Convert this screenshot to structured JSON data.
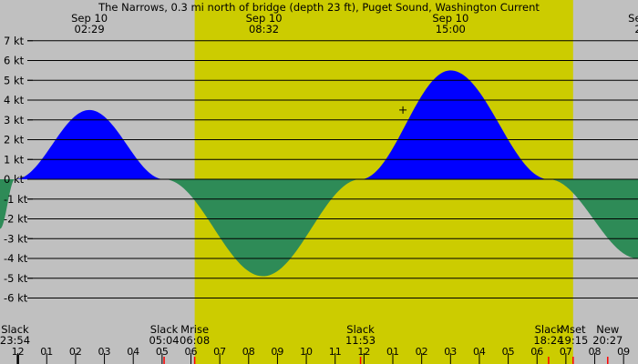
{
  "chart_data": {
    "type": "area",
    "title": "The Narrows, 0.3 mi north of bridge (depth 23 ft), Puget Sound, Washington Current",
    "colors": {
      "night_background": "#c0c0c0",
      "day_background": "#cccc00",
      "flood": "#0000ff",
      "ebb": "#2e8b57",
      "gridline": "#000000",
      "red_tick": "#ff0000"
    },
    "x_hours_visible": [
      23.38,
      45.5
    ],
    "y_range_kt": [
      -7.5,
      7.8
    ],
    "y_tick_values": [
      7,
      6,
      5,
      4,
      3,
      2,
      1,
      0,
      -1,
      -2,
      -3,
      -4,
      -5,
      -6
    ],
    "y_tick_labels": [
      "7 kt",
      "6 kt",
      "5 kt",
      "4 kt",
      "3 kt",
      "2 kt",
      "1 kt",
      "0 kt",
      "-1 kt",
      "-2 kt",
      "-3 kt",
      "-4 kt",
      "-5 kt",
      "-6 kt"
    ],
    "daylight_hours": [
      30.13,
      43.25
    ],
    "curve_points": [
      {
        "time": 23.38,
        "kt": -2.5
      },
      {
        "time": 23.9,
        "kt": 0
      },
      {
        "time": 26.48,
        "kt": 3.5
      },
      {
        "time": 29.07,
        "kt": 0
      },
      {
        "time": 32.5,
        "kt": -4.9
      },
      {
        "time": 35.88,
        "kt": 0
      },
      {
        "time": 39.0,
        "kt": 5.5
      },
      {
        "time": 42.4,
        "kt": 0
      },
      {
        "time": 45.5,
        "kt": -4.0
      }
    ],
    "peak_labels": [
      {
        "date": "Sep 10",
        "time": "02:29",
        "hour": 26.48
      },
      {
        "date": "Sep 10",
        "time": "08:32",
        "hour": 32.53
      },
      {
        "date": "Sep 10",
        "time": "15:00",
        "hour": 39.0
      },
      {
        "date": "Sep",
        "time": "2",
        "hour": 45.5
      }
    ],
    "events": [
      {
        "name": "Slack",
        "time": "23:54",
        "hour": 23.9
      },
      {
        "name": "Slack",
        "time": "05:04",
        "hour": 29.07
      },
      {
        "name": "Mrise",
        "time": "06:08",
        "hour": 30.13
      },
      {
        "name": "Slack",
        "time": "11:53",
        "hour": 35.88
      },
      {
        "name": "Slack",
        "time": "18:24",
        "hour": 42.4
      },
      {
        "name": "Mset",
        "time": "19:15",
        "hour": 43.25
      },
      {
        "name": "New",
        "time": "20:27",
        "hour": 44.45
      }
    ],
    "x_tick_labels": [
      "11",
      "12",
      "01",
      "02",
      "03",
      "04",
      "05",
      "06",
      "07",
      "08",
      "09",
      "10",
      "11",
      "12",
      "01",
      "02",
      "03",
      "04",
      "05",
      "06",
      "07",
      "08",
      "09"
    ],
    "x_tick_hours": [
      23,
      24,
      25,
      26,
      27,
      28,
      29,
      30,
      31,
      32,
      33,
      34,
      35,
      36,
      37,
      38,
      39,
      40,
      41,
      42,
      43,
      44,
      45
    ],
    "red_marker_hours": [
      29.07,
      30.13,
      35.88,
      42.4,
      43.25,
      44.45
    ],
    "crosshair": {
      "hour": 37.35,
      "kt": 3.5
    }
  }
}
